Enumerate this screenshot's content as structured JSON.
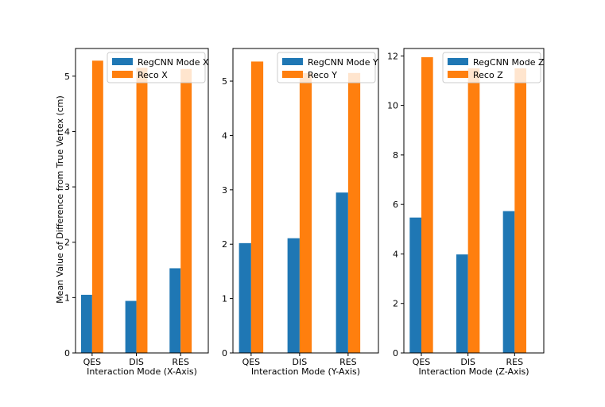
{
  "figure": {
    "ylabel": "Mean  Value of Difference from True Vertex (cm)"
  },
  "colors": {
    "regcnn": "#1f77b4",
    "reco": "#ff7f0e"
  },
  "chart_data": [
    {
      "type": "bar",
      "categories": [
        "QES",
        "DIS",
        "RES"
      ],
      "xlabel": "Interaction Mode (X-Axis)",
      "ylim": [
        0,
        5.5
      ],
      "yticks": [
        "0",
        "1",
        "2",
        "3",
        "4",
        "5"
      ],
      "legend_position": "upper-right",
      "series": [
        {
          "name": "RegCNN Mode X",
          "values": [
            1.05,
            0.94,
            1.53
          ]
        },
        {
          "name": "Reco X",
          "values": [
            5.28,
            5.15,
            5.13
          ]
        }
      ]
    },
    {
      "type": "bar",
      "categories": [
        "QES",
        "DIS",
        "RES"
      ],
      "xlabel": "Interaction Mode (Y-Axis)",
      "ylim": [
        0,
        5.6
      ],
      "yticks": [
        "0",
        "1",
        "2",
        "3",
        "4",
        "5"
      ],
      "legend_position": "upper-right",
      "series": [
        {
          "name": "RegCNN Mode Y",
          "values": [
            2.02,
            2.11,
            2.95
          ]
        },
        {
          "name": "Reco Y",
          "values": [
            5.36,
            5.15,
            5.15
          ]
        }
      ]
    },
    {
      "type": "bar",
      "categories": [
        "QES",
        "DIS",
        "RES"
      ],
      "xlabel": "Interaction Mode (Z-Axis)",
      "ylim": [
        0,
        12.3
      ],
      "yticks": [
        "0",
        "2",
        "4",
        "6",
        "8",
        "10",
        "12"
      ],
      "legend_position": "upper-right",
      "series": [
        {
          "name": "RegCNN Mode Z",
          "values": [
            5.47,
            3.98,
            5.73
          ]
        },
        {
          "name": "Reco Z",
          "values": [
            11.95,
            11.5,
            11.5
          ]
        }
      ]
    }
  ]
}
